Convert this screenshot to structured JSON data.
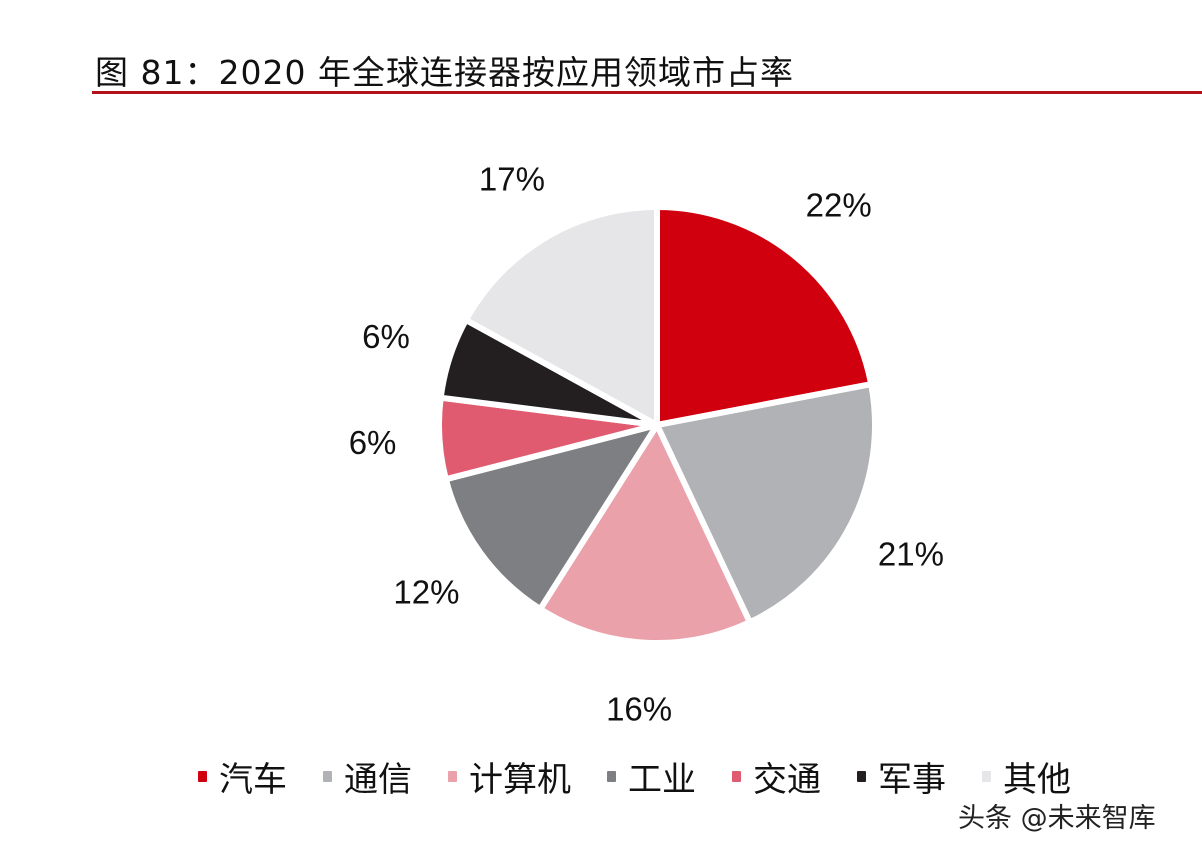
{
  "title": "图 81：2020 年全球连接器按应用领域市占率",
  "watermark": "头条 @未来智库",
  "chart_data": {
    "type": "pie",
    "title": "图 81：2020 年全球连接器按应用领域市占率",
    "categories": [
      "汽车",
      "通信",
      "计算机",
      "工业",
      "交通",
      "军事",
      "其他"
    ],
    "values": [
      22,
      21,
      16,
      12,
      6,
      6,
      17
    ],
    "labels": [
      "22%",
      "21%",
      "16%",
      "12%",
      "6%",
      "6%",
      "17%"
    ],
    "colors": [
      "#d0000f",
      "#b1b2b5",
      "#eba1aa",
      "#7e7f82",
      "#e05a70",
      "#231f20",
      "#e6e6e9"
    ],
    "start": "12 o'clock, clockwise",
    "legend_position": "bottom"
  }
}
